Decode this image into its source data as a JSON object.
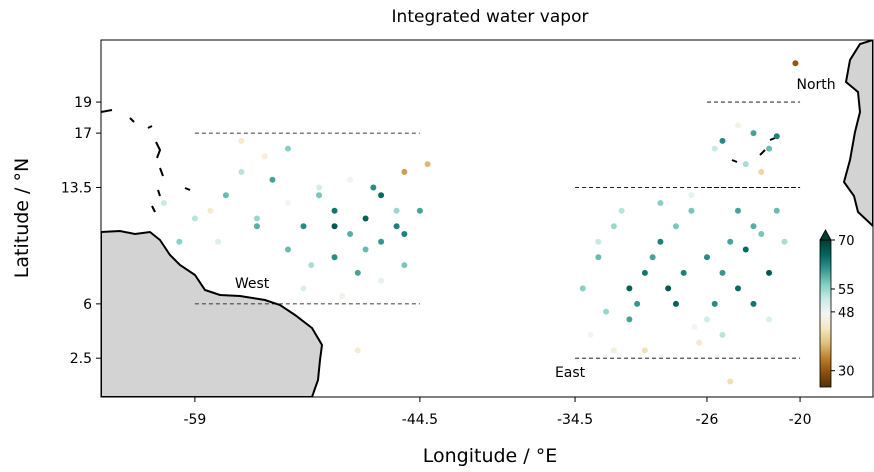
{
  "chart_data": {
    "type": "scatter-map",
    "title": "Integrated water vapor",
    "x_label": "Longitude / °E",
    "y_label": "Latitude / °N",
    "xlim": [
      -65.05,
      -15.3
    ],
    "ylim": [
      0,
      23
    ],
    "xticks": [
      -59,
      -44.5,
      -34.5,
      -26,
      -20
    ],
    "yticks": [
      2.5,
      6,
      13.5,
      17,
      19
    ],
    "cmap": "BrBG",
    "clim": [
      25,
      70
    ],
    "cbar_ticks": [
      30,
      48,
      55,
      70
    ],
    "regions": [
      {
        "name": "West",
        "lon": [
          -59,
          -44.5
        ],
        "lat": [
          6,
          17
        ]
      },
      {
        "name": "East",
        "lon": [
          -34.5,
          -20
        ],
        "lat": [
          2.5,
          13.5
        ]
      },
      {
        "name": "North",
        "lon": [
          -26,
          -20
        ],
        "lat": [
          13.5,
          19
        ]
      }
    ],
    "lon": [
      -61,
      -58,
      -57,
      -55,
      -54,
      -53,
      -52,
      -51,
      -50,
      -49,
      -48,
      -47,
      -46,
      -45.5,
      -57.5,
      -56,
      -54.5,
      -53,
      -51.5,
      -50,
      -48.5,
      -47,
      -45.5,
      -53,
      -51,
      -49,
      -47,
      -50,
      -48,
      -46,
      -44.5,
      -45.5,
      -44,
      -56,
      -55,
      -60,
      -59,
      -52,
      -49.5,
      -47.5,
      -34,
      -33,
      -32,
      -31,
      -30,
      -29,
      -28,
      -27,
      -26,
      -25,
      -24,
      -23,
      -22,
      -21,
      -33.5,
      -32,
      -30.5,
      -29,
      -27.5,
      -26,
      -24.5,
      -23,
      -21.5,
      -33,
      -31,
      -29.5,
      -28,
      -26.5,
      -25,
      -23.5,
      -22,
      -30,
      -27,
      -24,
      -32.5,
      -28.5,
      -25.5,
      -22.5,
      -31.5,
      -26.8,
      -25,
      -24,
      -23,
      -22,
      -23.5,
      -22.5,
      -21.5,
      -25.5,
      -20.3,
      -24.5,
      -48.5
    ],
    "lat": [
      12.5,
      12,
      13,
      11.5,
      14,
      12.5,
      11,
      13,
      12,
      10.5,
      11.5,
      10,
      12,
      10.5,
      10,
      14.5,
      15.5,
      9.5,
      8.5,
      9,
      8,
      7.5,
      8.5,
      16,
      13.5,
      14,
      13,
      11,
      9.5,
      11,
      12,
      14.5,
      15,
      16.5,
      11,
      10,
      11.5,
      7,
      6.5,
      13.5,
      7,
      9,
      11,
      5,
      8,
      10,
      6,
      12,
      9,
      4,
      7,
      11,
      8,
      10,
      4,
      3,
      6,
      12.5,
      8,
      5,
      10,
      6,
      12,
      10,
      7,
      9,
      11,
      3.5,
      8,
      9.5,
      5,
      3,
      13,
      12,
      5.5,
      7,
      6,
      10.5,
      12,
      4.5,
      16.5,
      17.5,
      17,
      16,
      15,
      14.5,
      16.8,
      16,
      21.5,
      1,
      3
    ],
    "values": [
      52,
      44,
      58,
      55,
      60,
      47,
      62,
      57,
      64,
      59,
      66,
      61,
      55,
      63,
      50,
      53,
      45,
      58,
      54,
      62,
      60,
      49,
      57,
      56,
      51,
      48,
      65,
      67,
      58,
      63,
      60,
      36,
      38,
      44,
      59,
      56,
      53,
      50,
      46,
      62,
      56,
      58,
      55,
      60,
      64,
      63,
      66,
      57,
      62,
      53,
      65,
      59,
      67,
      54,
      48,
      45,
      61,
      56,
      63,
      51,
      60,
      64,
      58,
      52,
      66,
      60,
      57,
      44,
      61,
      65,
      50,
      42,
      49,
      60,
      55,
      67,
      62,
      57,
      53,
      47,
      62,
      46,
      60,
      58,
      54,
      41,
      63,
      52,
      30,
      42,
      44
    ]
  }
}
